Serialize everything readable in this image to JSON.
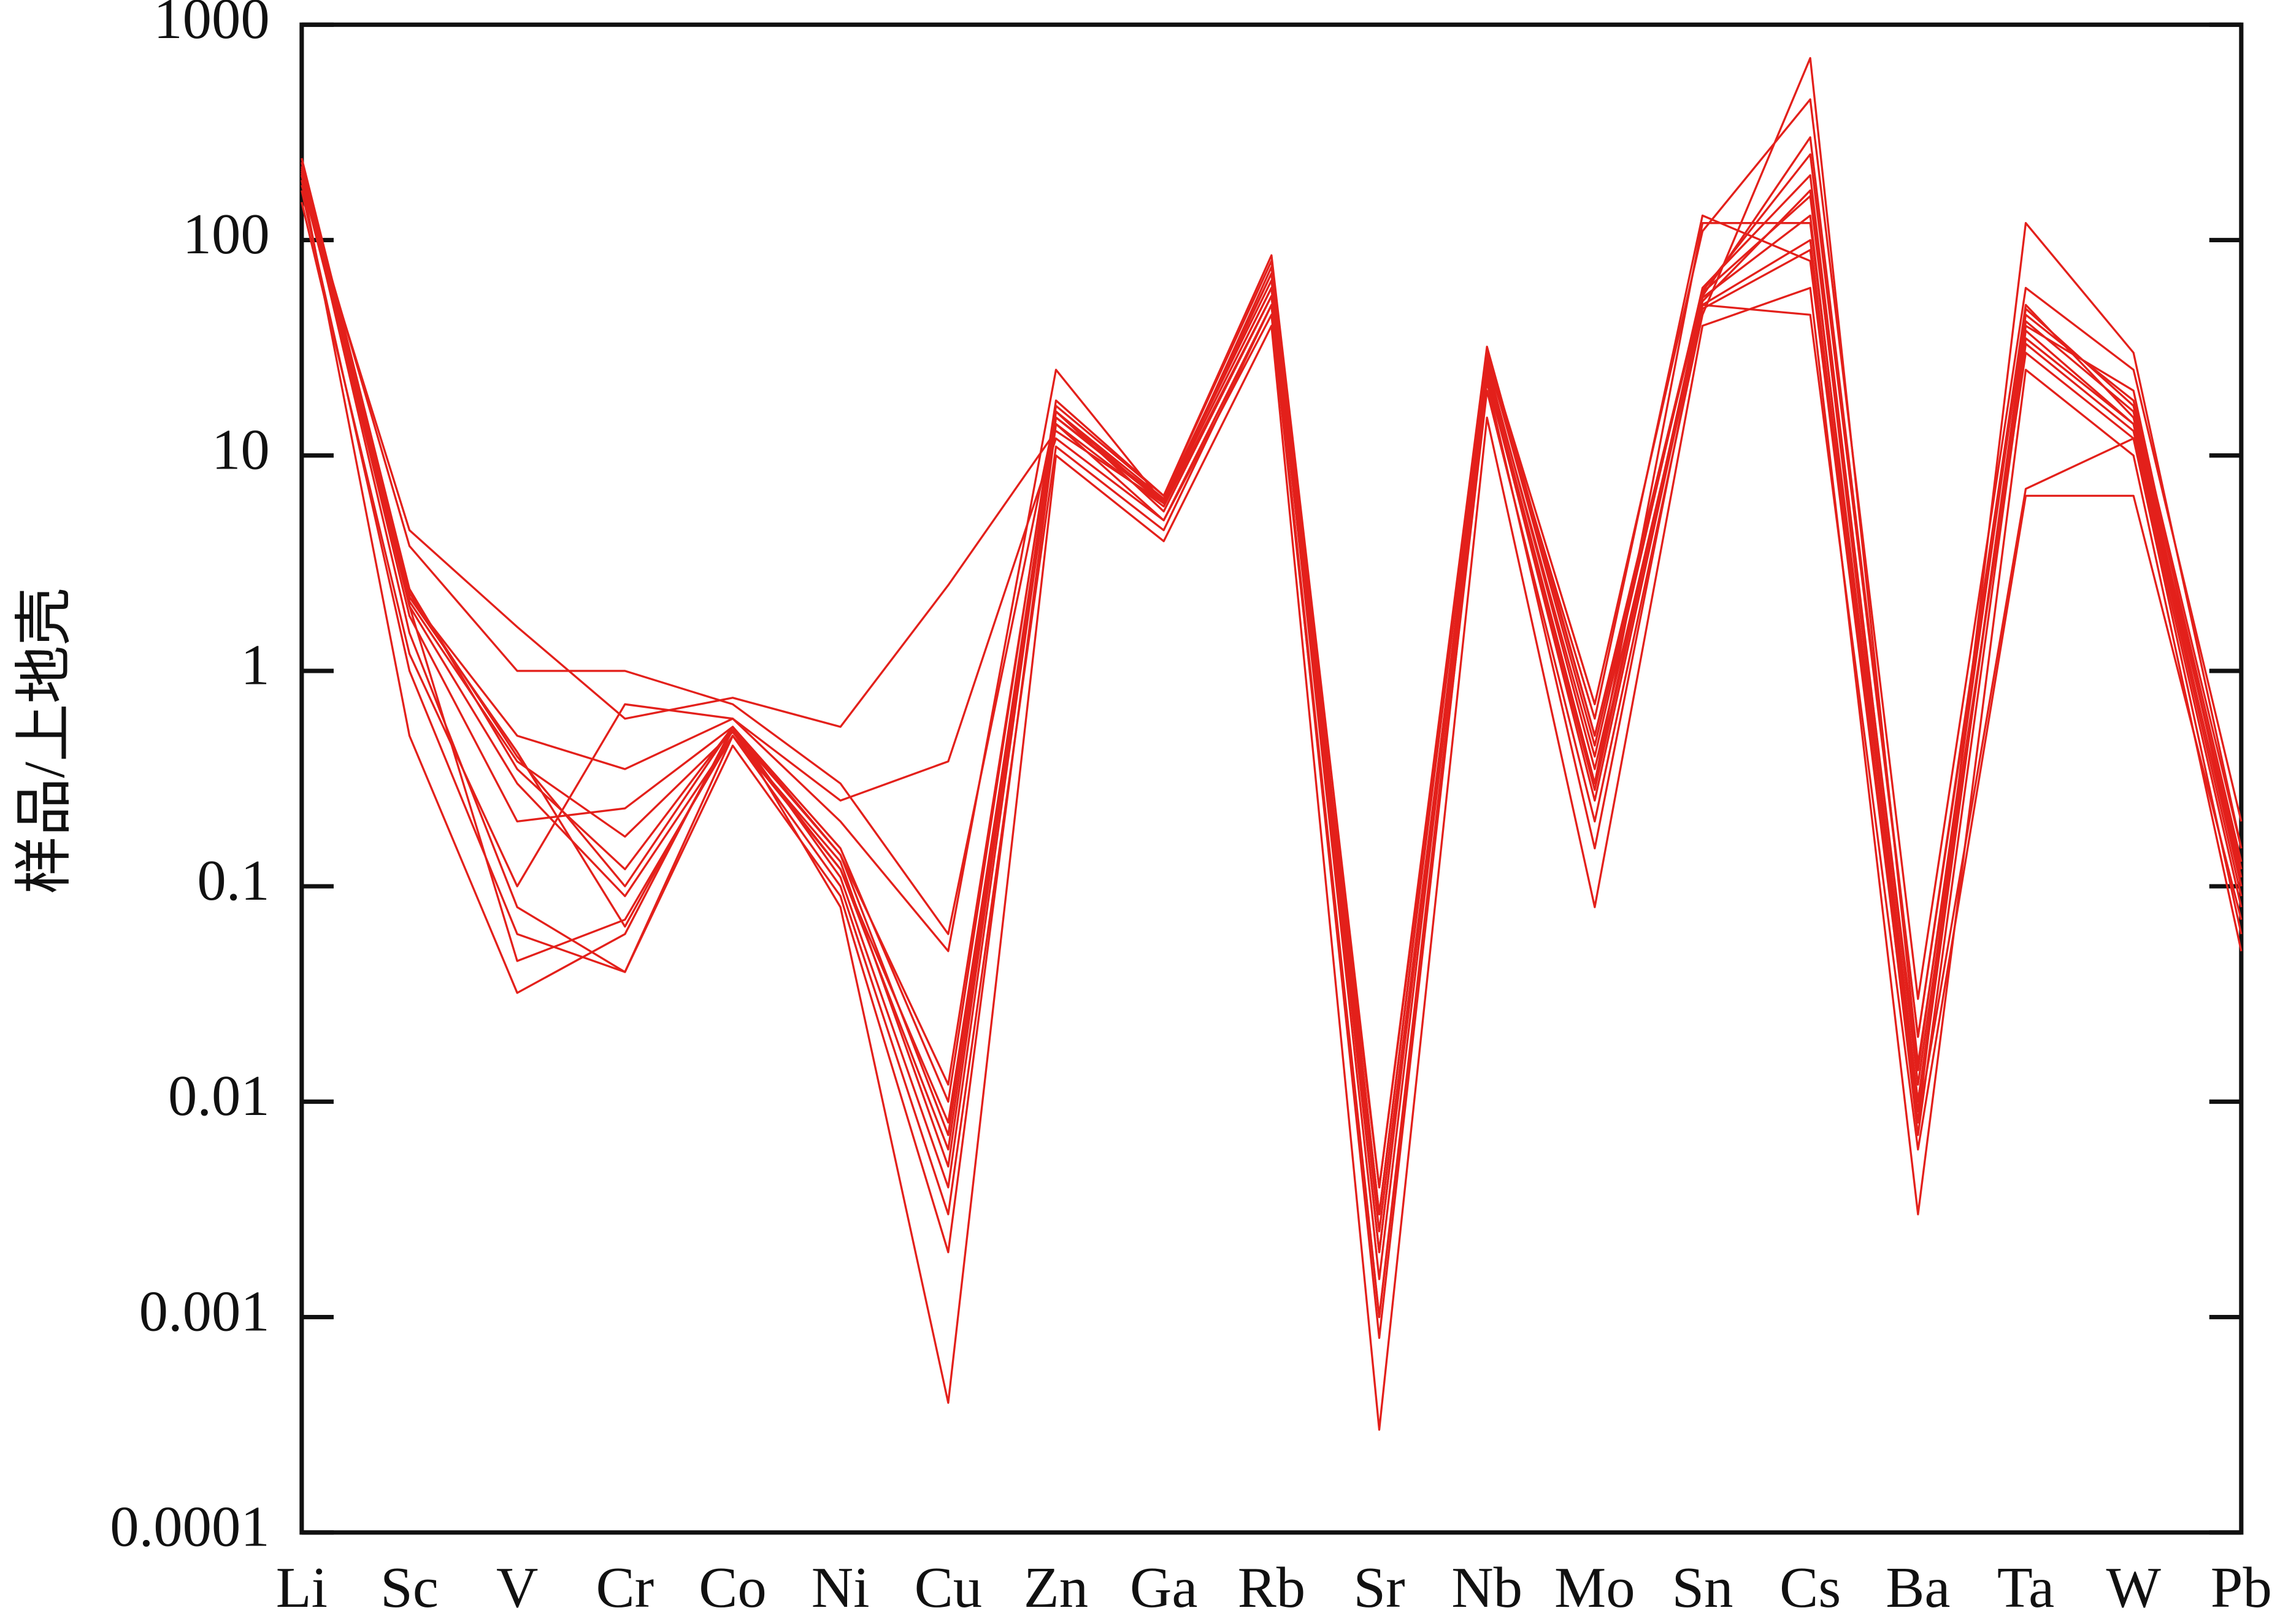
{
  "chart_data": {
    "type": "line",
    "ylabel": "样品/上地壳",
    "categories": [
      "Li",
      "Sc",
      "V",
      "Cr",
      "Co",
      "Ni",
      "Cu",
      "Zn",
      "Ga",
      "Rb",
      "Sr",
      "Nb",
      "Mo",
      "Sn",
      "Cs",
      "Ba",
      "Ta",
      "W",
      "Pb"
    ],
    "log_y": true,
    "ylim": [
      0.0001,
      1000
    ],
    "yticks": [
      0.0001,
      0.001,
      0.01,
      0.1,
      1,
      10,
      100,
      1000
    ],
    "color": "#e3201b",
    "series": [
      {
        "values": [
          220,
          2.3,
          0.4,
          0.1,
          0.55,
          0.14,
          0.012,
          17,
          6.5,
          80,
          0.003,
          30,
          0.5,
          55,
          300,
          0.02,
          50,
          15,
          0.12
        ]
      },
      {
        "values": [
          180,
          4.5,
          1.6,
          0.6,
          0.75,
          0.55,
          2.5,
          13,
          6,
          70,
          0.002,
          25,
          0.3,
          120,
          120,
          0.01,
          40,
          20,
          0.1
        ]
      },
      {
        "values": [
          200,
          3.8,
          1.0,
          1.0,
          0.7,
          0.3,
          0.06,
          16,
          5.5,
          55,
          0.004,
          28,
          0.6,
          130,
          80,
          0.008,
          120,
          30,
          0.15
        ]
      },
      {
        "values": [
          150,
          1.2,
          0.1,
          0.7,
          0.6,
          0.25,
          0.38,
          12,
          5,
          45,
          0.001,
          20,
          0.2,
          45,
          700,
          0.015,
          30,
          12,
          0.08
        ]
      },
      {
        "values": [
          190,
          0.5,
          0.032,
          0.06,
          0.55,
          0.08,
          0.0004,
          10,
          4,
          40,
          0.0003,
          15,
          0.08,
          40,
          60,
          0.003,
          25,
          10,
          0.05
        ]
      },
      {
        "values": [
          210,
          1.5,
          0.08,
          0.04,
          0.5,
          0.1,
          0.003,
          11,
          4.5,
          50,
          0.0008,
          22,
          0.15,
          50,
          45,
          0.006,
          6.5,
          6.5,
          0.07
        ]
      },
      {
        "values": [
          230,
          2.0,
          0.045,
          0.07,
          0.5,
          0.12,
          0.006,
          15,
          6,
          60,
          0.002,
          26,
          0.4,
          60,
          200,
          0.012,
          35,
          14,
          0.12
        ]
      },
      {
        "values": [
          200,
          2.2,
          0.5,
          0.35,
          0.6,
          0.2,
          0.05,
          25,
          6,
          75,
          0.003,
          30,
          0.7,
          110,
          450,
          0.03,
          60,
          25,
          0.2
        ]
      },
      {
        "values": [
          170,
          1.0,
          0.06,
          0.04,
          0.45,
          0.09,
          0.002,
          14,
          5,
          50,
          0.001,
          24,
          0.25,
          50,
          100,
          0.008,
          7,
          12,
          0.06
        ]
      },
      {
        "values": [
          240,
          2.4,
          0.35,
          0.12,
          0.55,
          0.15,
          0.01,
          18,
          6.5,
          85,
          0.004,
          32,
          0.5,
          58,
          250,
          0.02,
          45,
          18,
          0.15
        ]
      },
      {
        "values": [
          200,
          2.0,
          0.3,
          0.09,
          0.5,
          0.13,
          0.005,
          16,
          6,
          60,
          0.0015,
          25,
          0.3,
          52,
          170,
          0.01,
          38,
          14,
          0.1
        ]
      },
      {
        "values": [
          190,
          2.1,
          0.38,
          0.17,
          0.52,
          0.12,
          0.008,
          14,
          5.8,
          55,
          0.002,
          27,
          0.35,
          48,
          90,
          0.009,
          42,
          16,
          0.11
        ]
      },
      {
        "values": [
          205,
          1.8,
          0.2,
          0.23,
          0.55,
          0.11,
          0.004,
          15,
          6.2,
          65,
          0.0025,
          23,
          0.28,
          54,
          130,
          0.007,
          33,
          13,
          0.09
        ]
      },
      {
        "values": [
          215,
          2.2,
          0.42,
          0.065,
          0.53,
          0.14,
          0.007,
          16,
          6.3,
          70,
          0.003,
          29,
          0.45,
          57,
          160,
          0.014,
          48,
          17,
          0.13
        ]
      }
    ]
  }
}
